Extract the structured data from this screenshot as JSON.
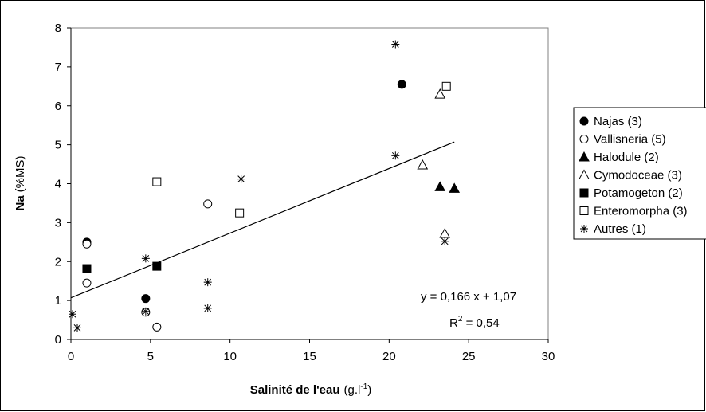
{
  "chart_data": {
    "type": "scatter",
    "xlabel": "Salinité de l'eau",
    "xlabel_unit": "(g.l",
    "xlabel_unit_sup": "-1",
    "xlabel_unit_end": ")",
    "ylabel": "Na",
    "ylabel_unit": "(%MS)",
    "xlim": [
      0,
      30
    ],
    "ylim": [
      0,
      8
    ],
    "xticks": [
      "0",
      "5",
      "10",
      "15",
      "20",
      "25",
      "30"
    ],
    "yticks": [
      "0",
      "1",
      "2",
      "3",
      "4",
      "5",
      "6",
      "7",
      "8"
    ],
    "grid": false,
    "legend_position": "right",
    "series": [
      {
        "name": "Najas (3)",
        "marker": "circle-filled",
        "points": [
          [
            1.0,
            2.5
          ],
          [
            4.7,
            1.05
          ],
          [
            20.8,
            6.55
          ]
        ]
      },
      {
        "name": "Vallisneria (5)",
        "marker": "circle-open",
        "points": [
          [
            1.0,
            2.45
          ],
          [
            1.0,
            1.45
          ],
          [
            4.7,
            0.7
          ],
          [
            5.4,
            0.32
          ],
          [
            8.6,
            3.48
          ]
        ]
      },
      {
        "name": "Halodule (2)",
        "marker": "triangle-filled",
        "points": [
          [
            23.2,
            3.92
          ],
          [
            24.1,
            3.88
          ]
        ]
      },
      {
        "name": "Cymodoceae (3)",
        "marker": "triangle-open",
        "points": [
          [
            22.1,
            4.48
          ],
          [
            23.2,
            6.3
          ],
          [
            23.5,
            2.72
          ]
        ]
      },
      {
        "name": "Potamogeton (2)",
        "marker": "square-filled",
        "points": [
          [
            1.0,
            1.82
          ],
          [
            5.4,
            1.88
          ]
        ]
      },
      {
        "name": "Enteromorpha (3)",
        "marker": "square-open",
        "points": [
          [
            5.4,
            4.05
          ],
          [
            10.6,
            3.25
          ],
          [
            23.6,
            6.5
          ]
        ]
      },
      {
        "name": "Autres (1)",
        "marker": "star",
        "points": [
          [
            0.1,
            0.65
          ],
          [
            0.4,
            0.3
          ],
          [
            4.7,
            2.08
          ],
          [
            4.7,
            0.72
          ],
          [
            8.6,
            1.47
          ],
          [
            8.6,
            0.8
          ],
          [
            10.7,
            4.12
          ],
          [
            20.4,
            7.58
          ],
          [
            20.4,
            4.72
          ],
          [
            23.5,
            2.52
          ]
        ]
      }
    ],
    "trendline": {
      "slope": 0.166,
      "intercept": 1.07,
      "x_range": [
        0,
        24.1
      ]
    },
    "annotations": {
      "equation": "y = 0,166 x + 1,07",
      "r2_prefix": "R",
      "r2_sup": "2",
      "r2_suffix": " = 0,54"
    }
  }
}
